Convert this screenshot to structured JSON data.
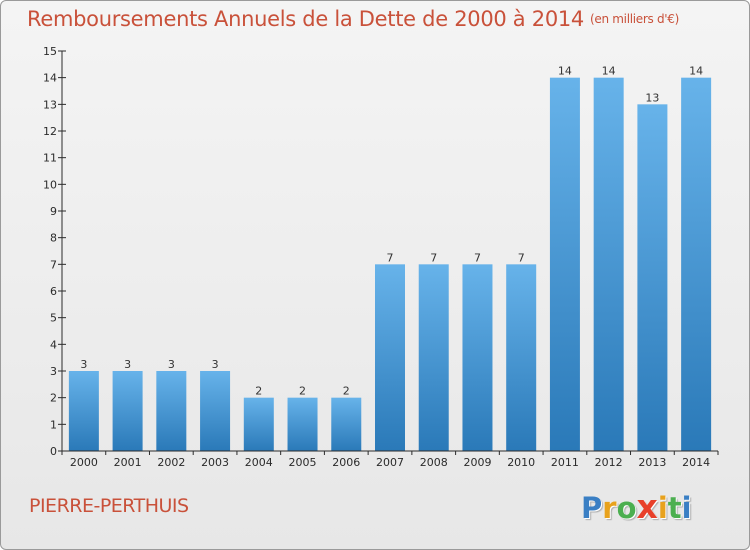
{
  "title": "Remboursements Annuels de la Dette de 2000 à 2014",
  "unit": "(en milliers d'€)",
  "commune": "PIERRE-PERTHUIS",
  "logo": {
    "letters": [
      "P",
      "r",
      "o",
      "x",
      "i",
      "t",
      "i"
    ],
    "colors": [
      "#3a7fc4",
      "#e8a21d",
      "#4caf50",
      "#e8402a",
      "#e8a21d",
      "#4caf50",
      "#3a7fc4"
    ]
  },
  "colors": {
    "bar_light": "#67b3ea",
    "bar_dark": "#2a79b8",
    "title": "#c9513a",
    "axis": "#2b2b2b"
  },
  "chart_data": {
    "type": "bar",
    "title": "Remboursements Annuels de la Dette de 2000 à 2014",
    "xlabel": "",
    "ylabel": "(en milliers d'€)",
    "ylim": [
      0,
      15
    ],
    "yticks": [
      0,
      1,
      2,
      3,
      4,
      5,
      6,
      7,
      8,
      9,
      10,
      11,
      12,
      13,
      14,
      15
    ],
    "grid": false,
    "categories": [
      "2000",
      "2001",
      "2002",
      "2003",
      "2004",
      "2005",
      "2006",
      "2007",
      "2008",
      "2009",
      "2010",
      "2011",
      "2012",
      "2013",
      "2014"
    ],
    "values": [
      3,
      3,
      3,
      3,
      2,
      2,
      2,
      7,
      7,
      7,
      7,
      14,
      14,
      13,
      14
    ]
  }
}
